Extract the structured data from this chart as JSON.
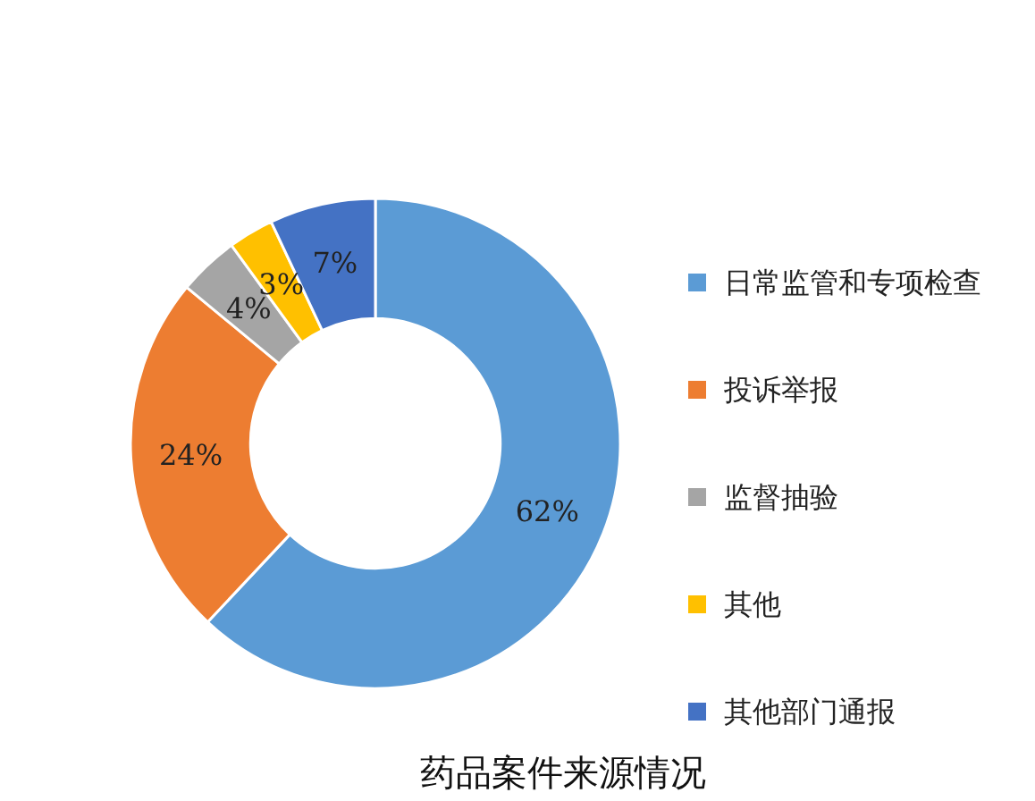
{
  "chart_data": {
    "type": "donut",
    "title": "药品案件来源情况",
    "categories": [
      "日常监管和专项检查",
      "投诉举报",
      "监督抽验",
      "其他",
      "其他部门通报"
    ],
    "values": [
      62,
      24,
      4,
      3,
      7
    ],
    "colors": [
      "#5b9bd5",
      "#ed7d31",
      "#a5a5a5",
      "#ffc000",
      "#4472c4"
    ],
    "value_labels": [
      "62%",
      "24%",
      "4%",
      "3%",
      "7%"
    ],
    "legend": "right"
  }
}
